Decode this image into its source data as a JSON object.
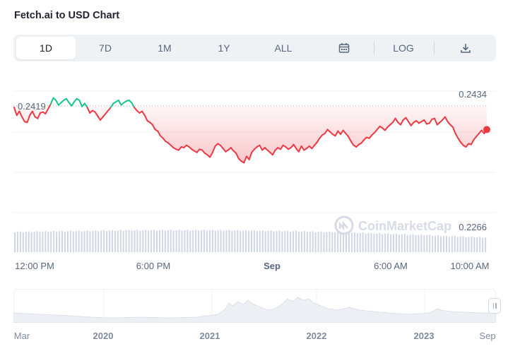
{
  "header": {
    "title": "Fetch.ai to USD Chart"
  },
  "toolbar": {
    "tabs": [
      "1D",
      "7D",
      "1M",
      "1Y",
      "ALL"
    ],
    "active": "1D",
    "calendar_icon": "calendar-icon",
    "log_label": "LOG",
    "download_icon": "download-icon"
  },
  "watermark": "CoinMarketCap",
  "colors": {
    "up": "#16c784",
    "down": "#ea3943",
    "volume": "#cfd6e4",
    "grid": "#eff2f5"
  },
  "chart_data": {
    "type": "line",
    "title": "Fetch.ai to USD Chart",
    "reference_value": 0.2419,
    "ylim": [
      0.2266,
      0.2434
    ],
    "y_tick_labels": [
      "0.2434",
      "0.2266"
    ],
    "reference_label": "0.2419",
    "x_tick_labels": [
      "12:00 PM",
      "6:00 PM",
      "Sep",
      "6:00 AM",
      "10:00 AM"
    ],
    "series": [
      {
        "values": [
          0.2417,
          0.2407,
          0.2412,
          0.2405,
          0.2399,
          0.2398,
          0.2407,
          0.2412,
          0.2405,
          0.2403,
          0.241,
          0.2411,
          0.2409,
          0.2415,
          0.2421,
          0.2429,
          0.2426,
          0.242,
          0.2423,
          0.2426,
          0.2428,
          0.2423,
          0.2419,
          0.2424,
          0.2428,
          0.2426,
          0.2418,
          0.2422,
          0.2417,
          0.241,
          0.2413,
          0.2411,
          0.2406,
          0.2401,
          0.2405,
          0.2409,
          0.2413,
          0.2417,
          0.2422,
          0.2424,
          0.2426,
          0.242,
          0.2423,
          0.2425,
          0.2426,
          0.2423,
          0.2417,
          0.2413,
          0.241,
          0.2412,
          0.2407,
          0.24,
          0.2398,
          0.2395,
          0.2389,
          0.2387,
          0.2381,
          0.2378,
          0.2374,
          0.2372,
          0.2369,
          0.2366,
          0.2364,
          0.2363,
          0.2367,
          0.2366,
          0.2369,
          0.2367,
          0.2364,
          0.2362,
          0.236,
          0.2364,
          0.2363,
          0.2359,
          0.2357,
          0.2354,
          0.236,
          0.2368,
          0.2371,
          0.2369,
          0.2365,
          0.2361,
          0.2363,
          0.2366,
          0.2362,
          0.2359,
          0.2352,
          0.2349,
          0.2347,
          0.2355,
          0.2351,
          0.236,
          0.2364,
          0.2367,
          0.2369,
          0.2363,
          0.2366,
          0.2363,
          0.236,
          0.2357,
          0.2363,
          0.2366,
          0.2364,
          0.2369,
          0.2367,
          0.2364,
          0.2366,
          0.237,
          0.2365,
          0.2361,
          0.2368,
          0.2363,
          0.2365,
          0.2368,
          0.2365,
          0.2369,
          0.2373,
          0.2378,
          0.2382,
          0.2384,
          0.2389,
          0.2386,
          0.2383,
          0.2381,
          0.2387,
          0.2383,
          0.2388,
          0.2384,
          0.238,
          0.2374,
          0.2369,
          0.2367,
          0.237,
          0.2372,
          0.2376,
          0.2379,
          0.2378,
          0.2382,
          0.2385,
          0.2389,
          0.2393,
          0.2391,
          0.2388,
          0.2392,
          0.2395,
          0.2398,
          0.2403,
          0.2398,
          0.2395,
          0.2401,
          0.2404,
          0.2399,
          0.2394,
          0.2398,
          0.24,
          0.2397,
          0.2399,
          0.2401,
          0.2396,
          0.2397,
          0.2402,
          0.2403,
          0.2395,
          0.2398,
          0.2401,
          0.2405,
          0.2399,
          0.2395,
          0.2392,
          0.2384,
          0.2378,
          0.2373,
          0.2369,
          0.2367,
          0.2371,
          0.237,
          0.2376,
          0.238,
          0.2384,
          0.2388,
          0.2384,
          0.2389
        ]
      }
    ]
  }
}
